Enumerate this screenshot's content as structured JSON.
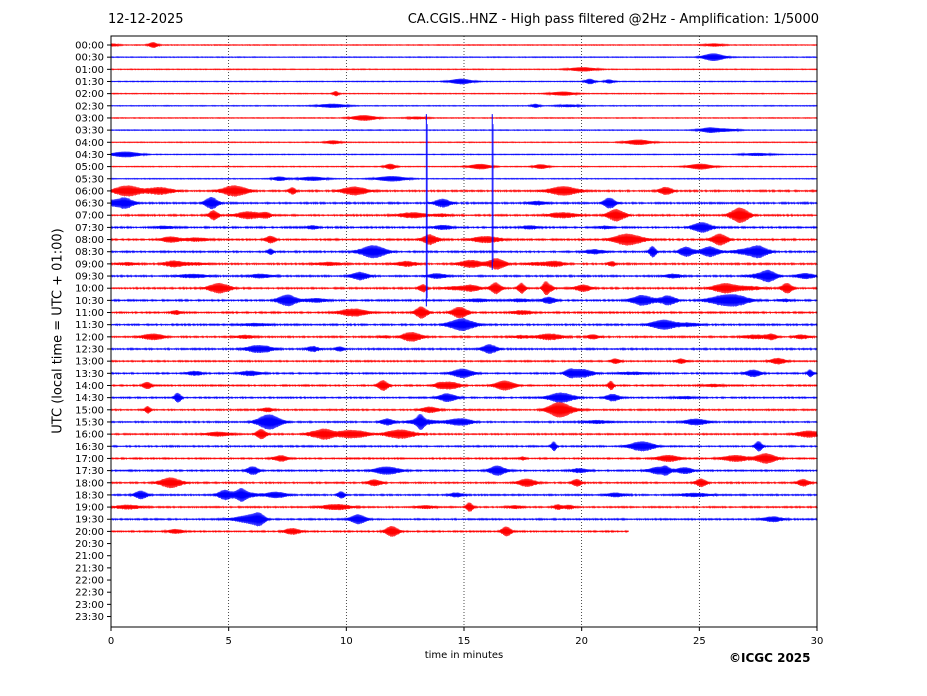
{
  "chart_data": {
    "type": "line",
    "date": "12-12-2025",
    "title": "CA.CGIS..HNZ - High pass filtered @2Hz - Amplification: 1/5000",
    "xlabel": "time in minutes",
    "ylabel": "UTC (local time = UTC + 01:00)",
    "copyright": "©ICGC 2025",
    "xlim": [
      0,
      30
    ],
    "x_ticks": [
      0,
      5,
      10,
      15,
      20,
      25,
      30
    ],
    "y_ticks": [
      "00:00",
      "00:30",
      "01:00",
      "01:30",
      "02:00",
      "02:30",
      "03:00",
      "03:30",
      "04:00",
      "04:30",
      "05:00",
      "05:30",
      "06:00",
      "06:30",
      "07:00",
      "07:30",
      "08:00",
      "08:30",
      "09:00",
      "09:30",
      "10:00",
      "10:30",
      "11:00",
      "11:30",
      "12:00",
      "12:30",
      "13:00",
      "13:30",
      "14:00",
      "14:30",
      "15:00",
      "15:30",
      "16:00",
      "16:30",
      "17:00",
      "17:30",
      "18:00",
      "18:30",
      "19:00",
      "19:30",
      "20:00",
      "20:30",
      "21:00",
      "21:30",
      "22:00",
      "22:30",
      "23:00",
      "23:30"
    ],
    "y_direction": "inverted",
    "vertical_gridlines": "dotted",
    "trace_colors": [
      "#ff0000",
      "#0000ff"
    ],
    "recorded_through": "20:22",
    "events": [
      {
        "minute": 13.4,
        "from": "03:30",
        "to": "10:30"
      },
      {
        "minute": 16.2,
        "from": "03:30",
        "to": "09:00"
      }
    ]
  }
}
